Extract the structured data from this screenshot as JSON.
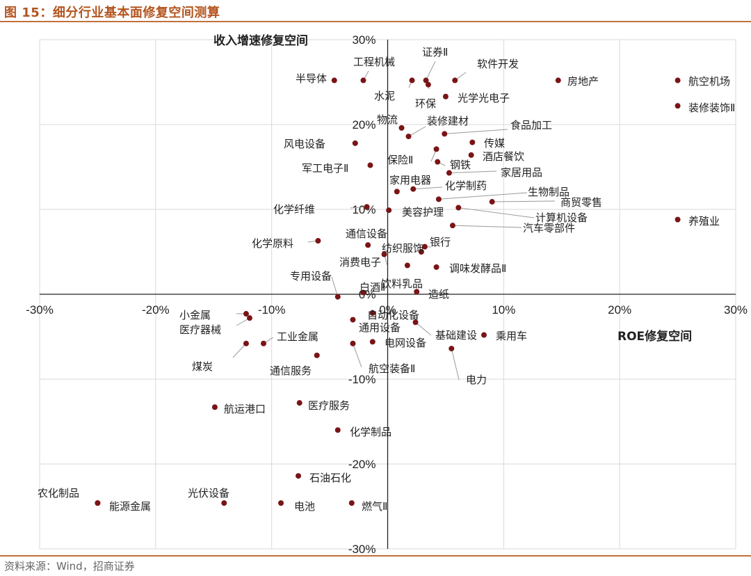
{
  "figure": {
    "title": "图 15：细分行业基本面修复空间测算",
    "source": "资料来源：Wind，招商证券"
  },
  "colors": {
    "accent": "#c0703a",
    "title": "#b3541e",
    "point": "#7a1416",
    "grid": "#d9d9d9"
  },
  "chart_data": {
    "type": "scatter",
    "xlabel": "ROE修复空间",
    "ylabel": "收入增速修复空间",
    "xlim": [
      -0.3,
      0.3
    ],
    "ylim": [
      -0.3,
      0.3
    ],
    "x_ticks": [
      "-30%",
      "-20%",
      "-10%",
      "0%",
      "10%",
      "20%",
      "30%"
    ],
    "y_ticks": [
      "30%",
      "20%",
      "10%",
      "0%",
      "-10%",
      "-20%",
      "-30%"
    ],
    "grid": true,
    "points": [
      {
        "label": "半导体",
        "x": -0.046,
        "y": 0.252
      },
      {
        "label": "工程机械",
        "x": -0.021,
        "y": 0.252
      },
      {
        "label": "证券Ⅱ",
        "x": 0.033,
        "y": 0.252
      },
      {
        "label": "软件开发",
        "x": 0.058,
        "y": 0.252
      },
      {
        "label": "水泥",
        "x": 0.021,
        "y": 0.252
      },
      {
        "label": "环保",
        "x": 0.035,
        "y": 0.247
      },
      {
        "label": "光学光电子",
        "x": 0.05,
        "y": 0.233
      },
      {
        "label": "房地产",
        "x": 0.147,
        "y": 0.252
      },
      {
        "label": "航空机场",
        "x": 0.25,
        "y": 0.252
      },
      {
        "label": "装修装饰Ⅱ",
        "x": 0.25,
        "y": 0.222
      },
      {
        "label": "物流",
        "x": 0.012,
        "y": 0.196
      },
      {
        "label": "装修建材",
        "x": 0.018,
        "y": 0.186
      },
      {
        "label": "食品加工",
        "x": 0.049,
        "y": 0.189
      },
      {
        "label": "风电设备",
        "x": -0.028,
        "y": 0.178
      },
      {
        "label": "传媒",
        "x": 0.073,
        "y": 0.179
      },
      {
        "label": "保险Ⅱ",
        "x": 0.042,
        "y": 0.171
      },
      {
        "label": "酒店餐饮",
        "x": 0.072,
        "y": 0.164
      },
      {
        "label": "钢铁",
        "x": 0.043,
        "y": 0.156
      },
      {
        "label": "军工电子Ⅱ",
        "x": -0.015,
        "y": 0.152
      },
      {
        "label": "家居用品",
        "x": 0.053,
        "y": 0.143
      },
      {
        "label": "家用电器",
        "x": 0.008,
        "y": 0.121
      },
      {
        "label": "化学制药",
        "x": 0.022,
        "y": 0.124
      },
      {
        "label": "生物制品",
        "x": 0.044,
        "y": 0.112
      },
      {
        "label": "商贸零售",
        "x": 0.09,
        "y": 0.109
      },
      {
        "label": "化学纤维",
        "x": -0.018,
        "y": 0.103
      },
      {
        "label": "美容护理",
        "x": 0.001,
        "y": 0.099
      },
      {
        "label": "计算机设备",
        "x": 0.061,
        "y": 0.102
      },
      {
        "label": "养殖业",
        "x": 0.25,
        "y": 0.088
      },
      {
        "label": "汽车零部件",
        "x": 0.056,
        "y": 0.081
      },
      {
        "label": "通信设备",
        "x": -0.017,
        "y": 0.058
      },
      {
        "label": "化学原料",
        "x": -0.06,
        "y": 0.063
      },
      {
        "label": "银行",
        "x": 0.032,
        "y": 0.056
      },
      {
        "label": "纺织服饰",
        "x": 0.029,
        "y": 0.05
      },
      {
        "label": "消费电子",
        "x": -0.003,
        "y": 0.047
      },
      {
        "label": "调味发酵品Ⅱ",
        "x": 0.042,
        "y": 0.032
      },
      {
        "label": "饮料乳品",
        "x": 0.017,
        "y": 0.034
      },
      {
        "label": "专用设备",
        "x": -0.043,
        "y": -0.003
      },
      {
        "label": "白酒Ⅱ",
        "x": -0.021,
        "y": 0.002
      },
      {
        "label": "造纸",
        "x": 0.025,
        "y": 0.003
      },
      {
        "label": "自动化设备",
        "x": -0.013,
        "y": -0.022
      },
      {
        "label": "小金属",
        "x": -0.122,
        "y": -0.023
      },
      {
        "label": "医疗器械",
        "x": -0.119,
        "y": -0.028
      },
      {
        "label": "通用设备",
        "x": -0.03,
        "y": -0.03
      },
      {
        "label": "基础建设",
        "x": 0.024,
        "y": -0.033
      },
      {
        "label": "乘用车",
        "x": 0.083,
        "y": -0.048
      },
      {
        "label": "工业金属",
        "x": -0.107,
        "y": -0.058
      },
      {
        "label": "煤炭",
        "x": -0.122,
        "y": -0.058
      },
      {
        "label": "电网设备",
        "x": -0.013,
        "y": -0.056
      },
      {
        "label": "航空装备Ⅱ",
        "x": -0.03,
        "y": -0.058
      },
      {
        "label": "通信服务",
        "x": -0.061,
        "y": -0.072
      },
      {
        "label": "电力",
        "x": 0.055,
        "y": -0.064
      },
      {
        "label": "航运港口",
        "x": -0.149,
        "y": -0.133
      },
      {
        "label": "医疗服务",
        "x": -0.076,
        "y": -0.128
      },
      {
        "label": "化学制品",
        "x": -0.043,
        "y": -0.16
      },
      {
        "label": "石油石化",
        "x": -0.077,
        "y": -0.214
      },
      {
        "label": "农化制品",
        "x": -0.25,
        "y": -0.246
      },
      {
        "label": "能源金属",
        "x": -0.25,
        "y": -0.246
      },
      {
        "label": "光伏设备",
        "x": -0.141,
        "y": -0.246
      },
      {
        "label": "电池",
        "x": -0.092,
        "y": -0.246
      },
      {
        "label": "燃气Ⅱ",
        "x": -0.031,
        "y": -0.246
      }
    ]
  }
}
